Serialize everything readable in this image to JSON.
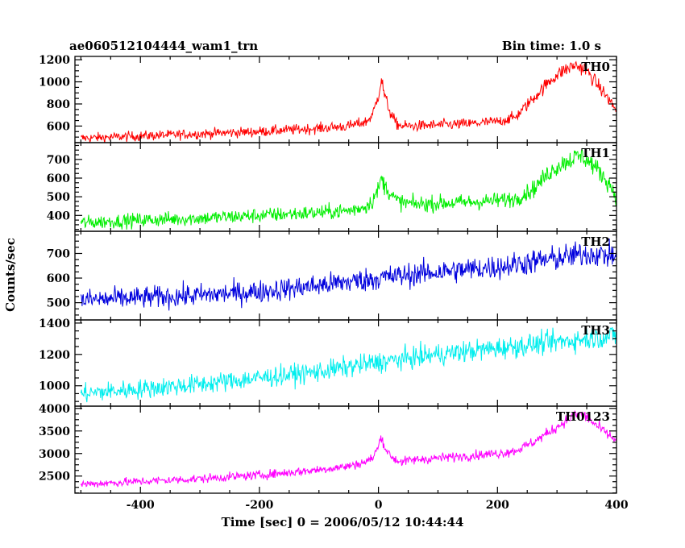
{
  "chart_data": {
    "type": "line",
    "title": "ae060512104444_wam1_trn",
    "bin_time": "Bin time: 1.0 s",
    "xlabel": "Time [sec] 0 = 2006/05/12 10:44:44",
    "ylabel": "Counts/sec",
    "xlim": [
      -510,
      400
    ],
    "xticks": [
      -400,
      -200,
      0,
      200,
      400
    ],
    "grid": false,
    "panels": [
      {
        "name": "TH0",
        "color": "#ff0000",
        "ylim": [
          450,
          1230
        ],
        "yticks": [
          600,
          800,
          1000,
          1200
        ],
        "x": [
          -500,
          -400,
          -300,
          -200,
          -100,
          -50,
          -20,
          -10,
          0,
          5,
          10,
          20,
          30,
          40,
          60,
          100,
          150,
          200,
          230,
          260,
          290,
          310,
          330,
          340,
          350,
          370,
          390,
          400
        ],
        "y": [
          490,
          510,
          530,
          550,
          580,
          600,
          640,
          700,
          880,
          1030,
          880,
          720,
          620,
          600,
          600,
          610,
          620,
          640,
          680,
          850,
          1020,
          1100,
          1150,
          1130,
          1100,
          960,
          820,
          740
        ]
      },
      {
        "name": "TH1",
        "color": "#00ee00",
        "ylim": [
          315,
          790
        ],
        "yticks": [
          400,
          500,
          600,
          700
        ],
        "x": [
          -500,
          -400,
          -300,
          -200,
          -100,
          -50,
          -20,
          -10,
          0,
          5,
          10,
          20,
          30,
          40,
          60,
          100,
          150,
          200,
          230,
          260,
          290,
          310,
          330,
          340,
          350,
          370,
          390,
          400
        ],
        "y": [
          360,
          375,
          385,
          400,
          415,
          425,
          450,
          480,
          540,
          600,
          560,
          520,
          480,
          470,
          460,
          465,
          470,
          480,
          490,
          540,
          640,
          680,
          710,
          720,
          700,
          640,
          560,
          500
        ]
      },
      {
        "name": "TH2",
        "color": "#0000dd",
        "ylim": [
          430,
          790
        ],
        "yticks": [
          500,
          600,
          700
        ],
        "x": [
          -500,
          -400,
          -300,
          -200,
          -100,
          0,
          100,
          200,
          300,
          350,
          400
        ],
        "y": [
          510,
          520,
          530,
          545,
          570,
          600,
          625,
          645,
          680,
          700,
          690
        ]
      },
      {
        "name": "TH3",
        "color": "#00eeee",
        "ylim": [
          870,
          1420
        ],
        "yticks": [
          1000,
          1200,
          1400
        ],
        "x": [
          -500,
          -400,
          -300,
          -200,
          -100,
          0,
          100,
          200,
          300,
          400
        ],
        "y": [
          950,
          980,
          1010,
          1050,
          1090,
          1150,
          1200,
          1240,
          1280,
          1320
        ]
      },
      {
        "name": "TH0123",
        "color": "#ff00ff",
        "ylim": [
          2120,
          4050
        ],
        "yticks": [
          2500,
          3000,
          3500,
          4000
        ],
        "x": [
          -500,
          -400,
          -300,
          -200,
          -100,
          -50,
          -20,
          -10,
          0,
          5,
          10,
          20,
          30,
          40,
          60,
          100,
          150,
          200,
          230,
          260,
          290,
          310,
          330,
          340,
          350,
          370,
          390,
          400
        ],
        "y": [
          2320,
          2380,
          2440,
          2520,
          2640,
          2720,
          2820,
          2900,
          3150,
          3400,
          3150,
          2950,
          2850,
          2820,
          2860,
          2900,
          2950,
          3000,
          3060,
          3250,
          3500,
          3680,
          3850,
          3880,
          3800,
          3580,
          3380,
          3280
        ]
      }
    ]
  }
}
